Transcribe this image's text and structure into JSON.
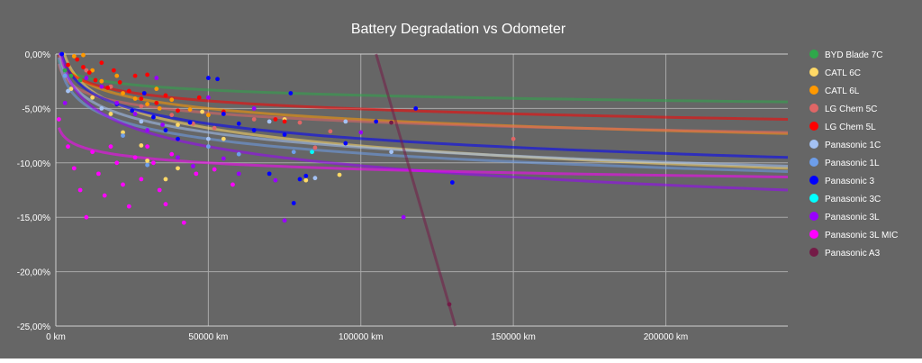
{
  "chart_data": {
    "type": "scatter",
    "title": "Battery Degradation vs Odometer",
    "xlabel": "",
    "ylabel": "",
    "xlim": [
      0,
      240000
    ],
    "ylim": [
      -25,
      0
    ],
    "x_ticks": [
      0,
      50000,
      100000,
      150000,
      200000
    ],
    "x_tick_labels": [
      "0 km",
      "50000 km",
      "100000 km",
      "150000 km",
      "200000 km"
    ],
    "y_ticks": [
      0,
      -5,
      -10,
      -15,
      -20,
      -25
    ],
    "y_tick_labels": [
      "0,00%",
      "-5,00%",
      "-10,00%",
      "-15,00%",
      "-20,00%",
      "-25,00%"
    ],
    "grid": true,
    "legend_position": "right",
    "background_color": "#666666",
    "series": [
      {
        "name": "BYD Blade 7C",
        "color": "#2ea84a",
        "trend": {
          "type": "log",
          "a": 4.285,
          "b": -0.701
        },
        "points": [
          [
            3000,
            -1.5
          ],
          [
            5000,
            -2.0
          ],
          [
            8000,
            -2.4
          ]
        ]
      },
      {
        "name": "CATL 6C",
        "color": "#ffd966",
        "trend": {
          "type": "log",
          "a": 18.72,
          "b": -2.359
        },
        "points": [
          [
            5000,
            -3.2
          ],
          [
            12000,
            -4.0
          ],
          [
            18000,
            -5.5
          ],
          [
            22000,
            -7.2
          ],
          [
            28000,
            -8.4
          ],
          [
            30000,
            -9.8
          ],
          [
            36000,
            -11.5
          ],
          [
            40000,
            -6.5
          ],
          [
            48000,
            -5.3
          ],
          [
            55000,
            -7.8
          ],
          [
            75000,
            -6.0
          ],
          [
            82000,
            -11.6
          ],
          [
            93000,
            -11.1
          ],
          [
            40000,
            -10.5
          ]
        ]
      },
      {
        "name": "CATL 6L",
        "color": "#ff9900",
        "trend": {
          "type": "log",
          "a": 10.862,
          "b": -1.466
        },
        "points": [
          [
            6000,
            -0.2
          ],
          [
            9000,
            -0.1
          ],
          [
            12000,
            -1.5
          ],
          [
            15000,
            -2.5
          ],
          [
            18000,
            -3.0
          ],
          [
            22000,
            -3.6
          ],
          [
            26000,
            -4.1
          ],
          [
            30000,
            -4.6
          ],
          [
            34000,
            -5.0
          ],
          [
            38000,
            -4.2
          ],
          [
            44000,
            -5.1
          ],
          [
            50000,
            -5.6
          ],
          [
            33000,
            -3.2
          ],
          [
            20000,
            -2.0
          ]
        ]
      },
      {
        "name": "LG Chem 5C",
        "color": "#e06666",
        "trend": {
          "type": "log",
          "a": 7.02,
          "b": -1.148
        },
        "points": [
          [
            10000,
            -1.5
          ],
          [
            18000,
            -3.0
          ],
          [
            28000,
            -4.8
          ],
          [
            38000,
            -5.6
          ],
          [
            45000,
            -6.4
          ],
          [
            52000,
            -6.8
          ],
          [
            65000,
            -6.0
          ],
          [
            80000,
            -6.3
          ],
          [
            85000,
            -8.6
          ],
          [
            90000,
            -7.1
          ],
          [
            150000,
            -7.8
          ]
        ]
      },
      {
        "name": "LG Chem 5L",
        "color": "#ff0000",
        "trend": {
          "type": "log",
          "a": 7.428,
          "b": -1.084
        },
        "points": [
          [
            4000,
            -1.0
          ],
          [
            7000,
            -0.5
          ],
          [
            9000,
            -1.2
          ],
          [
            11000,
            -1.7
          ],
          [
            13000,
            -2.4
          ],
          [
            15000,
            -0.8
          ],
          [
            17000,
            -3.1
          ],
          [
            19000,
            -1.5
          ],
          [
            21000,
            -2.6
          ],
          [
            24000,
            -3.4
          ],
          [
            26000,
            -2.0
          ],
          [
            28000,
            -4.1
          ],
          [
            30000,
            -1.9
          ],
          [
            33000,
            -4.5
          ],
          [
            36000,
            -3.8
          ],
          [
            40000,
            -5.2
          ],
          [
            47000,
            -4.0
          ],
          [
            55000,
            -5.3
          ],
          [
            72000,
            -6.0
          ],
          [
            75000,
            -6.2
          ]
        ]
      },
      {
        "name": "Panasonic 1C",
        "color": "#a4c2f4",
        "trend": {
          "type": "log",
          "a": 14.18,
          "b": -1.976
        },
        "points": [
          [
            4000,
            -3.4
          ],
          [
            15000,
            -5.0
          ],
          [
            28000,
            -6.2
          ],
          [
            50000,
            -7.8
          ],
          [
            70000,
            -6.2
          ],
          [
            85000,
            -11.4
          ],
          [
            95000,
            -6.2
          ],
          [
            110000,
            -9.0
          ]
        ]
      },
      {
        "name": "Panasonic 1L",
        "color": "#6d9eeb",
        "trend": {
          "type": "log",
          "a": 12.9,
          "b": -1.913
        },
        "points": [
          [
            3000,
            -2.0
          ],
          [
            22000,
            -7.5
          ],
          [
            30000,
            -10.2
          ],
          [
            50000,
            -8.5
          ],
          [
            60000,
            -9.2
          ],
          [
            78000,
            -9.0
          ]
        ]
      },
      {
        "name": "Panasonic 3",
        "color": "#0000ff",
        "trend": {
          "type": "log",
          "a": 14.98,
          "b": -1.976
        },
        "points": [
          [
            2000,
            0.0
          ],
          [
            20000,
            -4.6
          ],
          [
            25000,
            -5.2
          ],
          [
            29000,
            -3.6
          ],
          [
            32000,
            -5.8
          ],
          [
            36000,
            -7.0
          ],
          [
            40000,
            -7.8
          ],
          [
            44000,
            -6.3
          ],
          [
            50000,
            -2.2
          ],
          [
            53000,
            -2.3
          ],
          [
            55000,
            -5.5
          ],
          [
            60000,
            -6.4
          ],
          [
            65000,
            -7.0
          ],
          [
            70000,
            -11.0
          ],
          [
            75000,
            -7.4
          ],
          [
            77000,
            -3.6
          ],
          [
            78000,
            -13.7
          ],
          [
            80000,
            -11.5
          ],
          [
            82000,
            -11.2
          ],
          [
            95000,
            -8.2
          ],
          [
            105000,
            -6.2
          ],
          [
            118000,
            -5.0
          ],
          [
            130000,
            -11.8
          ]
        ]
      },
      {
        "name": "Panasonic 3C",
        "color": "#00ffff",
        "trend": null,
        "points": [
          [
            84000,
            -9.0
          ]
        ]
      },
      {
        "name": "Panasonic 3L",
        "color": "#9900ff",
        "trend": {
          "type": "log",
          "a": 19.09,
          "b": -2.55
        },
        "points": [
          [
            3000,
            -4.5
          ],
          [
            10000,
            -2.2
          ],
          [
            15000,
            -3.0
          ],
          [
            20000,
            -4.5
          ],
          [
            26000,
            -5.5
          ],
          [
            30000,
            -7.0
          ],
          [
            33000,
            -2.2
          ],
          [
            35000,
            -6.5
          ],
          [
            40000,
            -9.5
          ],
          [
            45000,
            -10.3
          ],
          [
            50000,
            -4.0
          ],
          [
            55000,
            -9.6
          ],
          [
            60000,
            -11.0
          ],
          [
            65000,
            -5.0
          ],
          [
            72000,
            -11.6
          ],
          [
            75000,
            -15.3
          ],
          [
            100000,
            -7.2
          ],
          [
            114000,
            -15.0
          ]
        ]
      },
      {
        "name": "Panasonic 3L MIC",
        "color": "#ff00ff",
        "trend": {
          "type": "log",
          "a": -1.03,
          "b": -0.829
        },
        "points": [
          [
            1000,
            -6.0
          ],
          [
            4000,
            -8.5
          ],
          [
            6000,
            -10.5
          ],
          [
            8000,
            -12.5
          ],
          [
            10000,
            -15.0
          ],
          [
            12000,
            -9.0
          ],
          [
            14000,
            -11.0
          ],
          [
            16000,
            -13.0
          ],
          [
            18000,
            -8.5
          ],
          [
            20000,
            -10.0
          ],
          [
            22000,
            -12.0
          ],
          [
            24000,
            -14.0
          ],
          [
            26000,
            -9.5
          ],
          [
            28000,
            -11.5
          ],
          [
            30000,
            -8.5
          ],
          [
            32000,
            -10.0
          ],
          [
            34000,
            -12.5
          ],
          [
            36000,
            -13.8
          ],
          [
            38000,
            -9.2
          ],
          [
            42000,
            -15.5
          ],
          [
            46000,
            -11.0
          ],
          [
            52000,
            -10.6
          ],
          [
            58000,
            -12.0
          ]
        ]
      },
      {
        "name": "Panasonic A3",
        "color": "#741b47",
        "trend": {
          "type": "linear",
          "slope": -0.000962,
          "intercept": 101.0
        },
        "points": [
          [
            110000,
            -6.3
          ],
          [
            129000,
            -23.0
          ]
        ]
      }
    ]
  }
}
